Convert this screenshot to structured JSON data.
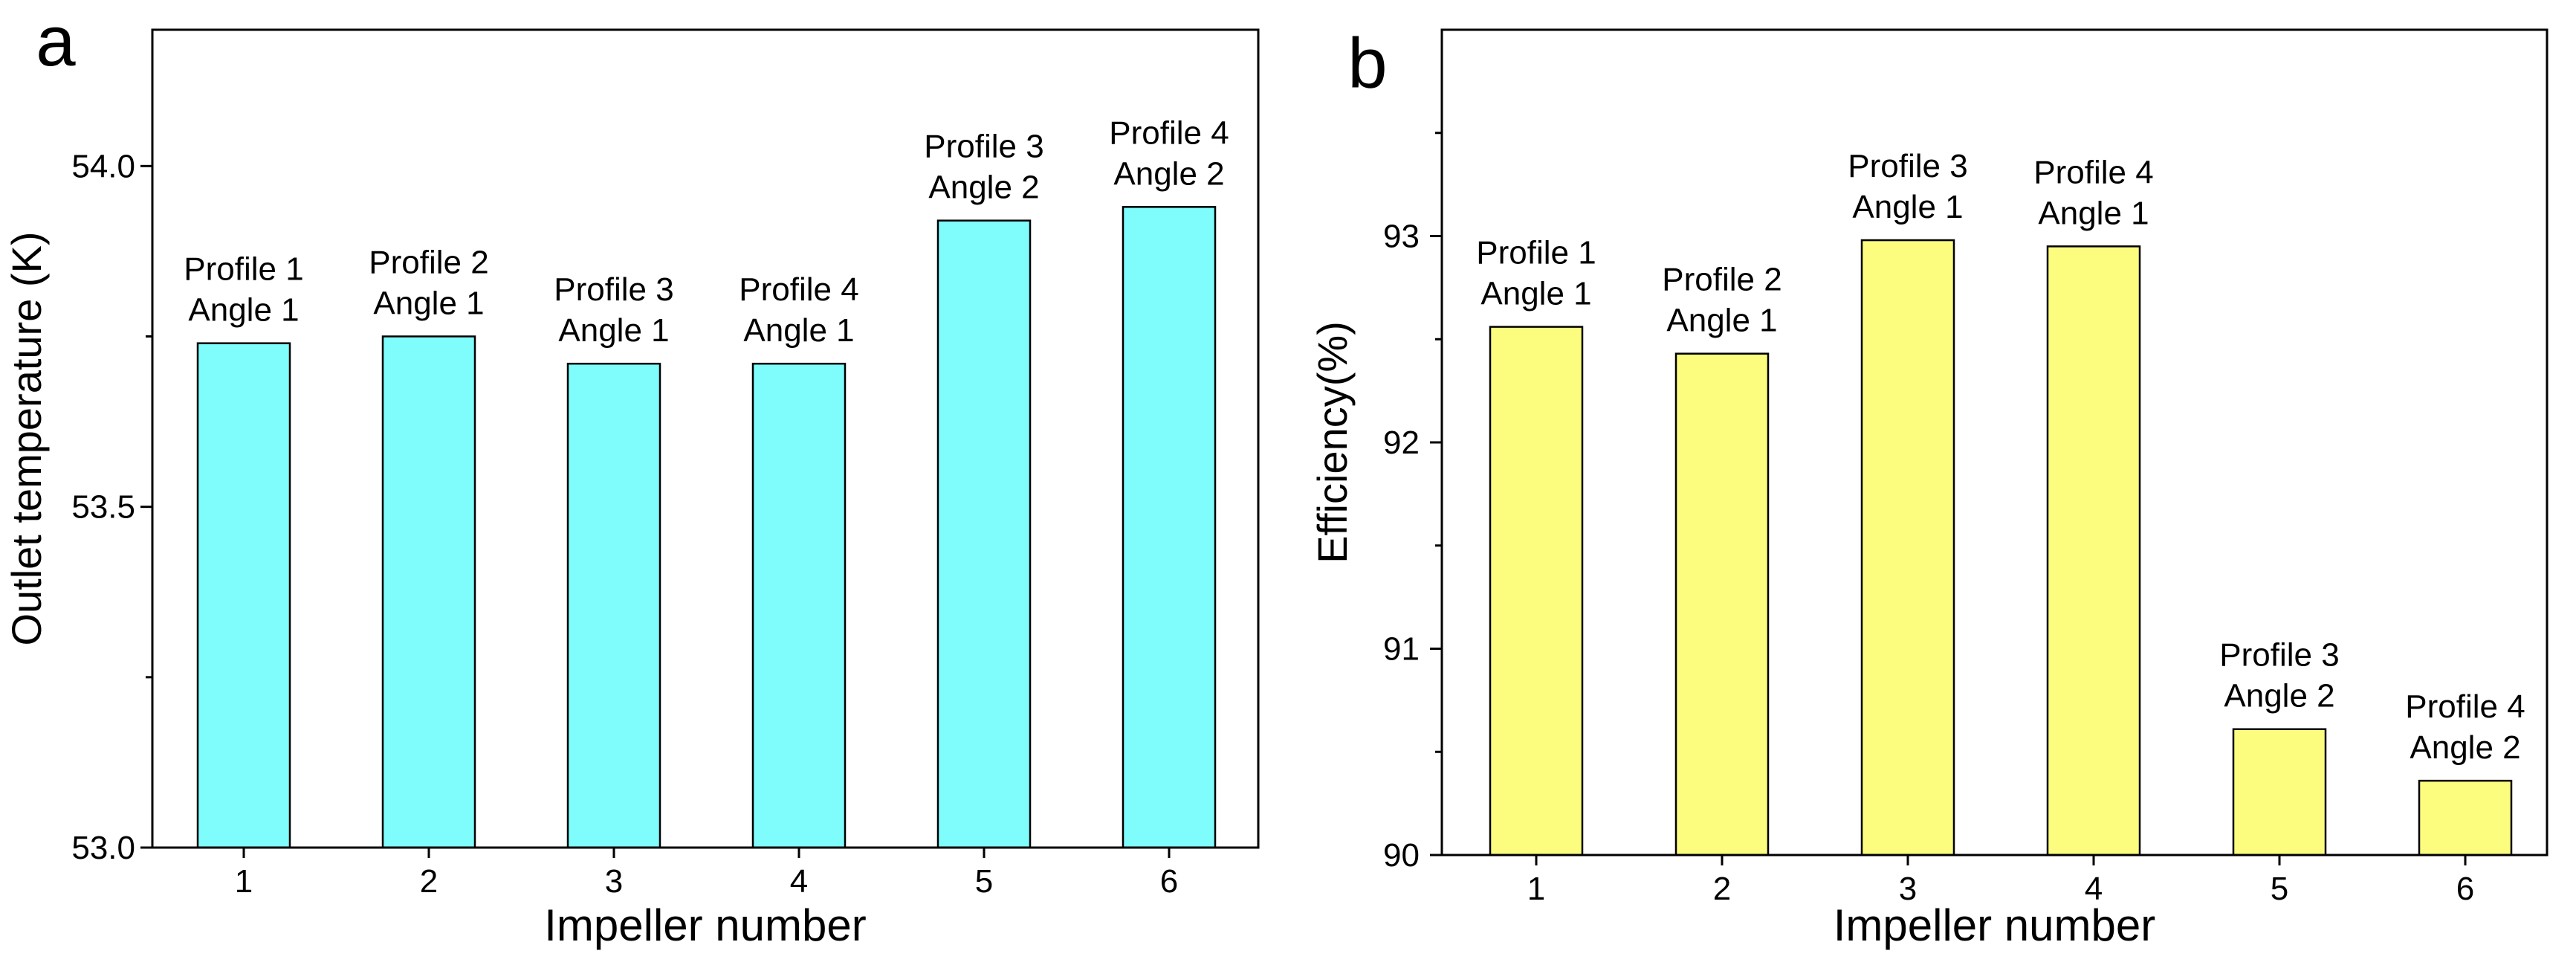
{
  "chart_data": [
    {
      "panel_label": "a",
      "type": "bar",
      "categories": [
        "1",
        "2",
        "3",
        "4",
        "5",
        "6"
      ],
      "values": [
        53.74,
        53.75,
        53.71,
        53.71,
        53.92,
        53.94
      ],
      "bar_labels": [
        [
          "Profile 1",
          "Angle 1"
        ],
        [
          "Profile 2",
          "Angle 1"
        ],
        [
          "Profile 3",
          "Angle 1"
        ],
        [
          "Profile 4",
          "Angle 1"
        ],
        [
          "Profile 3",
          "Angle 2"
        ],
        [
          "Profile 4",
          "Angle 2"
        ]
      ],
      "xlabel": "Impeller number",
      "ylabel": "Outlet temperature (K)",
      "ylim": [
        53.0,
        54.2
      ],
      "major_ticks": [
        53.0,
        53.5,
        54.0
      ],
      "tick_labels": [
        "53.0",
        "53.5",
        "54.0"
      ],
      "minor_ticks": [
        53.25,
        53.75
      ],
      "bar_color": "#7ffcfc",
      "grid": false
    },
    {
      "panel_label": "b",
      "type": "bar",
      "categories": [
        "1",
        "2",
        "3",
        "4",
        "5",
        "6"
      ],
      "values": [
        92.56,
        92.43,
        92.98,
        92.95,
        90.61,
        90.36
      ],
      "bar_labels": [
        [
          "Profile 1",
          "Angle 1"
        ],
        [
          "Profile 2",
          "Angle 1"
        ],
        [
          "Profile 3",
          "Angle 1"
        ],
        [
          "Profile 4",
          "Angle 1"
        ],
        [
          "Profile 3",
          "Angle 2"
        ],
        [
          "Profile 4",
          "Angle 2"
        ]
      ],
      "xlabel": "Impeller number",
      "ylabel": "Efficiency(%)",
      "ylim": [
        90,
        94
      ],
      "major_ticks": [
        90,
        91,
        92,
        93
      ],
      "tick_labels": [
        "90",
        "91",
        "92",
        "93"
      ],
      "minor_ticks": [
        90.5,
        91.5,
        92.5,
        93.5
      ],
      "bar_color": "#fcfc7f",
      "grid": false
    }
  ]
}
